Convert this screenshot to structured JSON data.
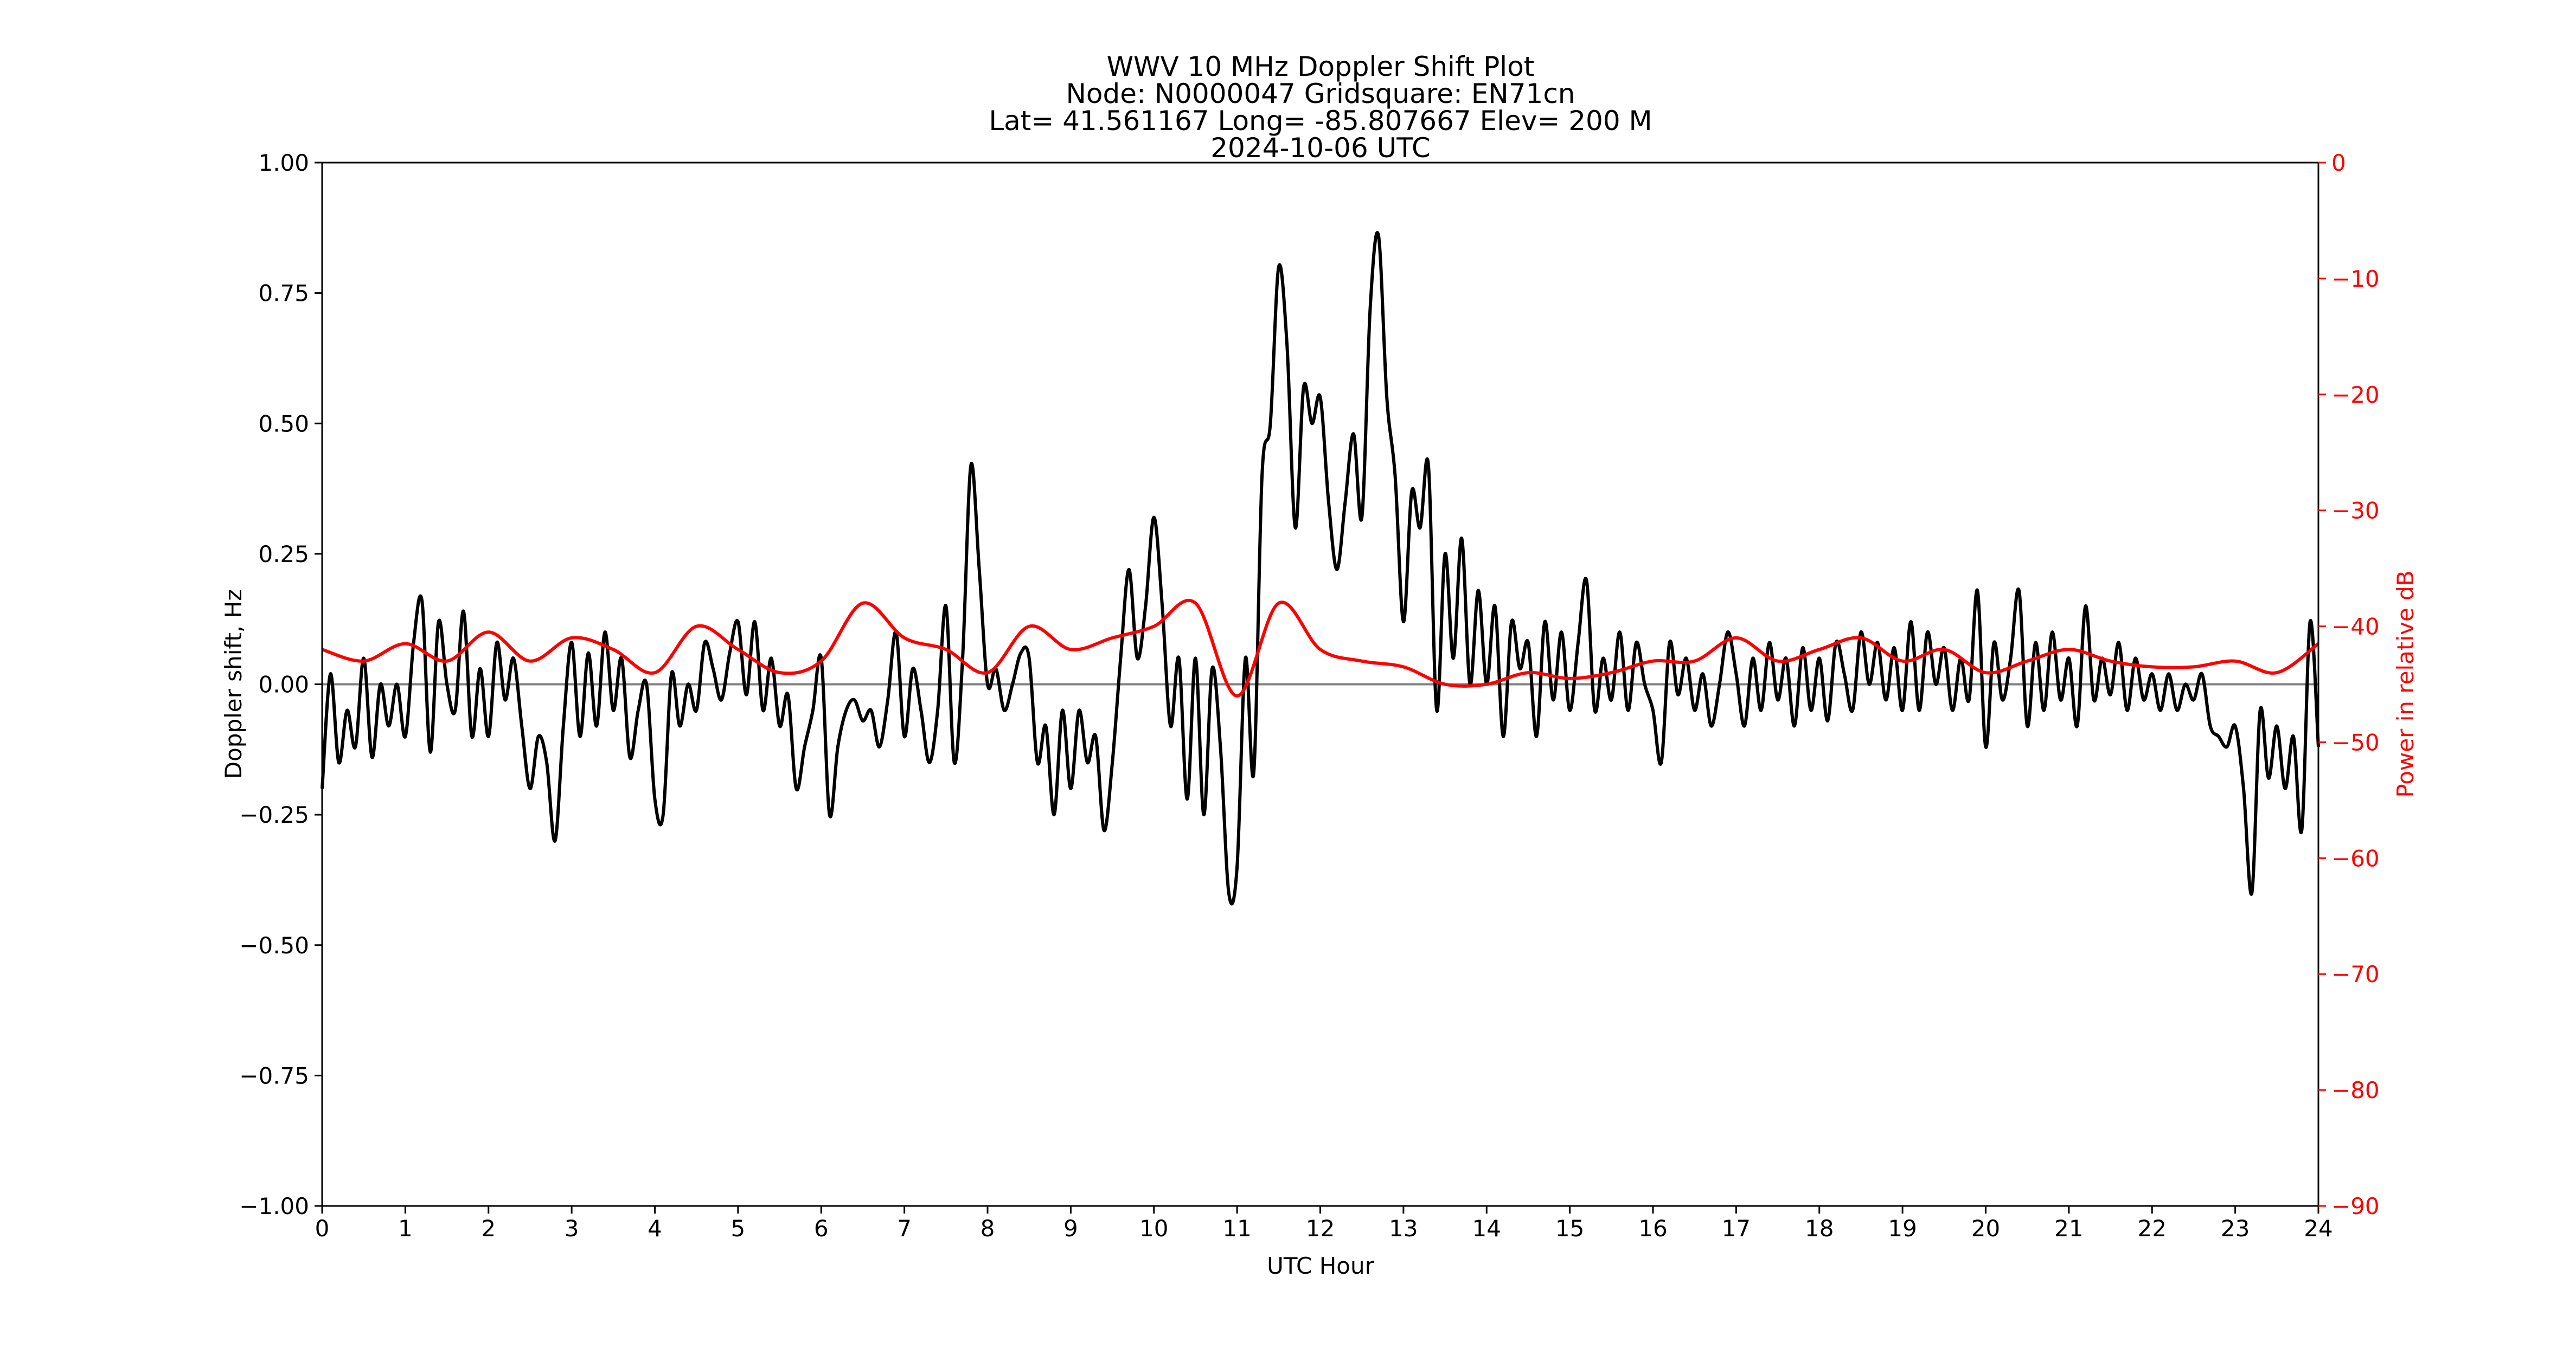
{
  "chart_data": {
    "type": "line",
    "title_lines": [
      "WWV 10 MHz Doppler Shift Plot",
      "Node:  N0000047     Gridsquare:  EN71cn",
      "Lat= 41.561167    Long= -85.807667    Elev= 200 M",
      "2024-10-06  UTC"
    ],
    "xlabel": "UTC Hour",
    "ylabel": "Doppler shift, Hz",
    "y2label": "Power in relative dB",
    "xlim": [
      0,
      24
    ],
    "ylim": [
      -1,
      1
    ],
    "y2lim": [
      -90,
      0
    ],
    "xticks": [
      "0",
      "1",
      "2",
      "3",
      "4",
      "5",
      "6",
      "7",
      "8",
      "9",
      "10",
      "11",
      "12",
      "13",
      "14",
      "15",
      "16",
      "17",
      "18",
      "19",
      "20",
      "21",
      "22",
      "23",
      "24"
    ],
    "yticks": [
      "1.00",
      "0.75",
      "0.50",
      "0.25",
      "0.00",
      "−0.25",
      "−0.50",
      "−0.75",
      "−1.00"
    ],
    "ytick_values": [
      1,
      0.75,
      0.5,
      0.25,
      0,
      -0.25,
      -0.5,
      -0.75,
      -1
    ],
    "y2ticks": [
      "0",
      "−10",
      "−20",
      "−30",
      "−40",
      "−50",
      "−60",
      "−70",
      "−80",
      "−90"
    ],
    "y2tick_values": [
      0,
      -10,
      -20,
      -30,
      -40,
      -50,
      -60,
      -70,
      -80,
      -90
    ],
    "grid": false,
    "zero_line": true,
    "colors": {
      "doppler": "#000000",
      "power": "#ff0000",
      "zero": "#808080"
    },
    "series": [
      {
        "name": "Doppler shift",
        "axis": "left",
        "x_start": 0,
        "x_step": 0.1,
        "values": [
          -0.2,
          0.02,
          -0.15,
          -0.05,
          -0.12,
          0.05,
          -0.14,
          0.0,
          -0.08,
          0.0,
          -0.1,
          0.08,
          0.16,
          -0.13,
          0.12,
          0.0,
          -0.05,
          0.14,
          -0.1,
          0.03,
          -0.1,
          0.08,
          -0.03,
          0.05,
          -0.08,
          -0.2,
          -0.1,
          -0.15,
          -0.3,
          -0.08,
          0.08,
          -0.1,
          0.06,
          -0.08,
          0.1,
          -0.05,
          0.05,
          -0.14,
          -0.05,
          0.0,
          -0.22,
          -0.25,
          0.02,
          -0.08,
          0.0,
          -0.05,
          0.08,
          0.03,
          -0.03,
          0.06,
          0.12,
          -0.02,
          0.12,
          -0.05,
          0.05,
          -0.08,
          -0.02,
          -0.2,
          -0.12,
          -0.05,
          0.05,
          -0.25,
          -0.12,
          -0.05,
          -0.03,
          -0.07,
          -0.05,
          -0.12,
          -0.03,
          0.1,
          -0.1,
          0.03,
          -0.05,
          -0.15,
          -0.05,
          0.15,
          -0.15,
          0.05,
          0.42,
          0.22,
          0.0,
          0.03,
          -0.05,
          0.0,
          0.06,
          0.05,
          -0.15,
          -0.08,
          -0.25,
          -0.05,
          -0.2,
          -0.05,
          -0.15,
          -0.1,
          -0.28,
          -0.15,
          0.05,
          0.22,
          0.05,
          0.15,
          0.32,
          0.15,
          -0.08,
          0.05,
          -0.22,
          0.05,
          -0.25,
          0.03,
          -0.12,
          -0.4,
          -0.35,
          0.05,
          -0.17,
          0.4,
          0.5,
          0.8,
          0.65,
          0.3,
          0.57,
          0.5,
          0.55,
          0.35,
          0.22,
          0.35,
          0.48,
          0.32,
          0.72,
          0.86,
          0.55,
          0.4,
          0.12,
          0.37,
          0.3,
          0.42,
          -0.05,
          0.25,
          0.05,
          0.28,
          0.0,
          0.18,
          0.0,
          0.15,
          -0.1,
          0.12,
          0.03,
          0.08,
          -0.1,
          0.12,
          -0.03,
          0.1,
          -0.05,
          0.08,
          0.2,
          -0.05,
          0.05,
          -0.03,
          0.1,
          -0.05,
          0.08,
          0.0,
          -0.05,
          -0.15,
          0.08,
          -0.02,
          0.05,
          -0.05,
          0.02,
          -0.08,
          0.0,
          0.1,
          0.02,
          -0.08,
          0.05,
          -0.05,
          0.08,
          -0.03,
          0.05,
          -0.08,
          0.07,
          -0.05,
          0.05,
          -0.07,
          0.08,
          0.02,
          -0.05,
          0.1,
          0.0,
          0.08,
          -0.03,
          0.07,
          -0.05,
          0.12,
          -0.05,
          0.1,
          0.0,
          0.07,
          -0.05,
          0.05,
          -0.03,
          0.18,
          -0.12,
          0.08,
          -0.03,
          0.05,
          0.18,
          -0.08,
          0.08,
          -0.05,
          0.1,
          -0.03,
          0.05,
          -0.08,
          0.15,
          -0.03,
          0.05,
          -0.02,
          0.08,
          -0.05,
          0.05,
          -0.03,
          0.02,
          -0.05,
          0.02,
          -0.05,
          0.0,
          -0.03,
          0.02,
          -0.08,
          -0.1,
          -0.12,
          -0.08,
          -0.2,
          -0.4,
          -0.05,
          -0.18,
          -0.08,
          -0.2,
          -0.1,
          -0.28,
          0.12,
          -0.12
        ]
      },
      {
        "name": "Power",
        "axis": "right",
        "x_start": 0,
        "x_step": 0.5,
        "values": [
          -42,
          -43,
          -41.5,
          -43,
          -40.5,
          -43,
          -41,
          -42,
          -44,
          -40,
          -42,
          -44,
          -43,
          -38,
          -41,
          -42,
          -44,
          -40,
          -42,
          -41,
          -40,
          -38,
          -46,
          -38,
          -42,
          -43,
          -43.5,
          -45,
          -45,
          -44,
          -44.5,
          -44,
          -43,
          -43,
          -41,
          -43,
          -42,
          -41,
          -43,
          -42,
          -44,
          -43,
          -42,
          -43,
          -43.5,
          -43.5,
          -43,
          -44,
          -41.5
        ]
      }
    ]
  }
}
